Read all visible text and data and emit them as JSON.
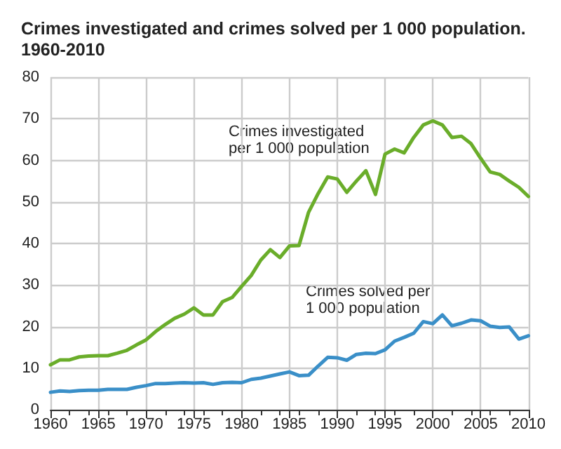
{
  "chart_data": {
    "type": "line",
    "title": "Crimes investigated and crimes solved per 1 000 population. 1960-2010",
    "x": [
      1960,
      1961,
      1962,
      1963,
      1964,
      1965,
      1966,
      1967,
      1968,
      1969,
      1970,
      1971,
      1972,
      1973,
      1974,
      1975,
      1976,
      1977,
      1978,
      1979,
      1980,
      1981,
      1982,
      1983,
      1984,
      1985,
      1986,
      1987,
      1988,
      1989,
      1990,
      1991,
      1992,
      1993,
      1994,
      1995,
      1996,
      1997,
      1998,
      1999,
      2000,
      2001,
      2002,
      2003,
      2004,
      2005,
      2006,
      2007,
      2008,
      2009,
      2010
    ],
    "series": [
      {
        "name": "Crimes investigated per 1 000 population",
        "color": "#6aad2a",
        "values": [
          10.8,
          12,
          12,
          12.7,
          12.9,
          13,
          13,
          13.6,
          14.3,
          15.6,
          16.8,
          18.8,
          20.5,
          22,
          23,
          24.5,
          22.8,
          22.8,
          26,
          27,
          29.7,
          32.3,
          36,
          38.5,
          36.6,
          39.4,
          39.5,
          47.5,
          52,
          56,
          55.5,
          52.3,
          55,
          57.5,
          51.8,
          61.5,
          62.7,
          61.8,
          65.5,
          68.5,
          69.5,
          68.5,
          65.5,
          65.8,
          64,
          60.5,
          57.2,
          56.6,
          55,
          53.5,
          51.3
        ]
      },
      {
        "name": "Crimes solved per 1 000 population",
        "color": "#3a8fc8",
        "values": [
          4.2,
          4.5,
          4.4,
          4.6,
          4.7,
          4.7,
          4.9,
          4.9,
          4.9,
          5.4,
          5.8,
          6.3,
          6.3,
          6.4,
          6.5,
          6.4,
          6.5,
          6.1,
          6.5,
          6.6,
          6.5,
          7.3,
          7.6,
          8.1,
          8.6,
          9.1,
          8.2,
          8.3,
          10.5,
          12.6,
          12.5,
          11.9,
          13.3,
          13.6,
          13.5,
          14.4,
          16.5,
          17.4,
          18.4,
          21.2,
          20.7,
          22.8,
          20.2,
          20.8,
          21.6,
          21.4,
          20.1,
          19.8,
          19.9,
          17,
          17.8
        ]
      }
    ],
    "xlim": [
      1960,
      2010
    ],
    "xticks": [
      1960,
      1965,
      1970,
      1975,
      1980,
      1985,
      1990,
      1995,
      2000,
      2005,
      2010
    ],
    "ylim": [
      0,
      80
    ],
    "yticks": [
      0,
      10,
      20,
      30,
      40,
      50,
      60,
      70,
      80
    ],
    "grid": true,
    "legend": false,
    "marker": "none",
    "line_style": "solid"
  }
}
